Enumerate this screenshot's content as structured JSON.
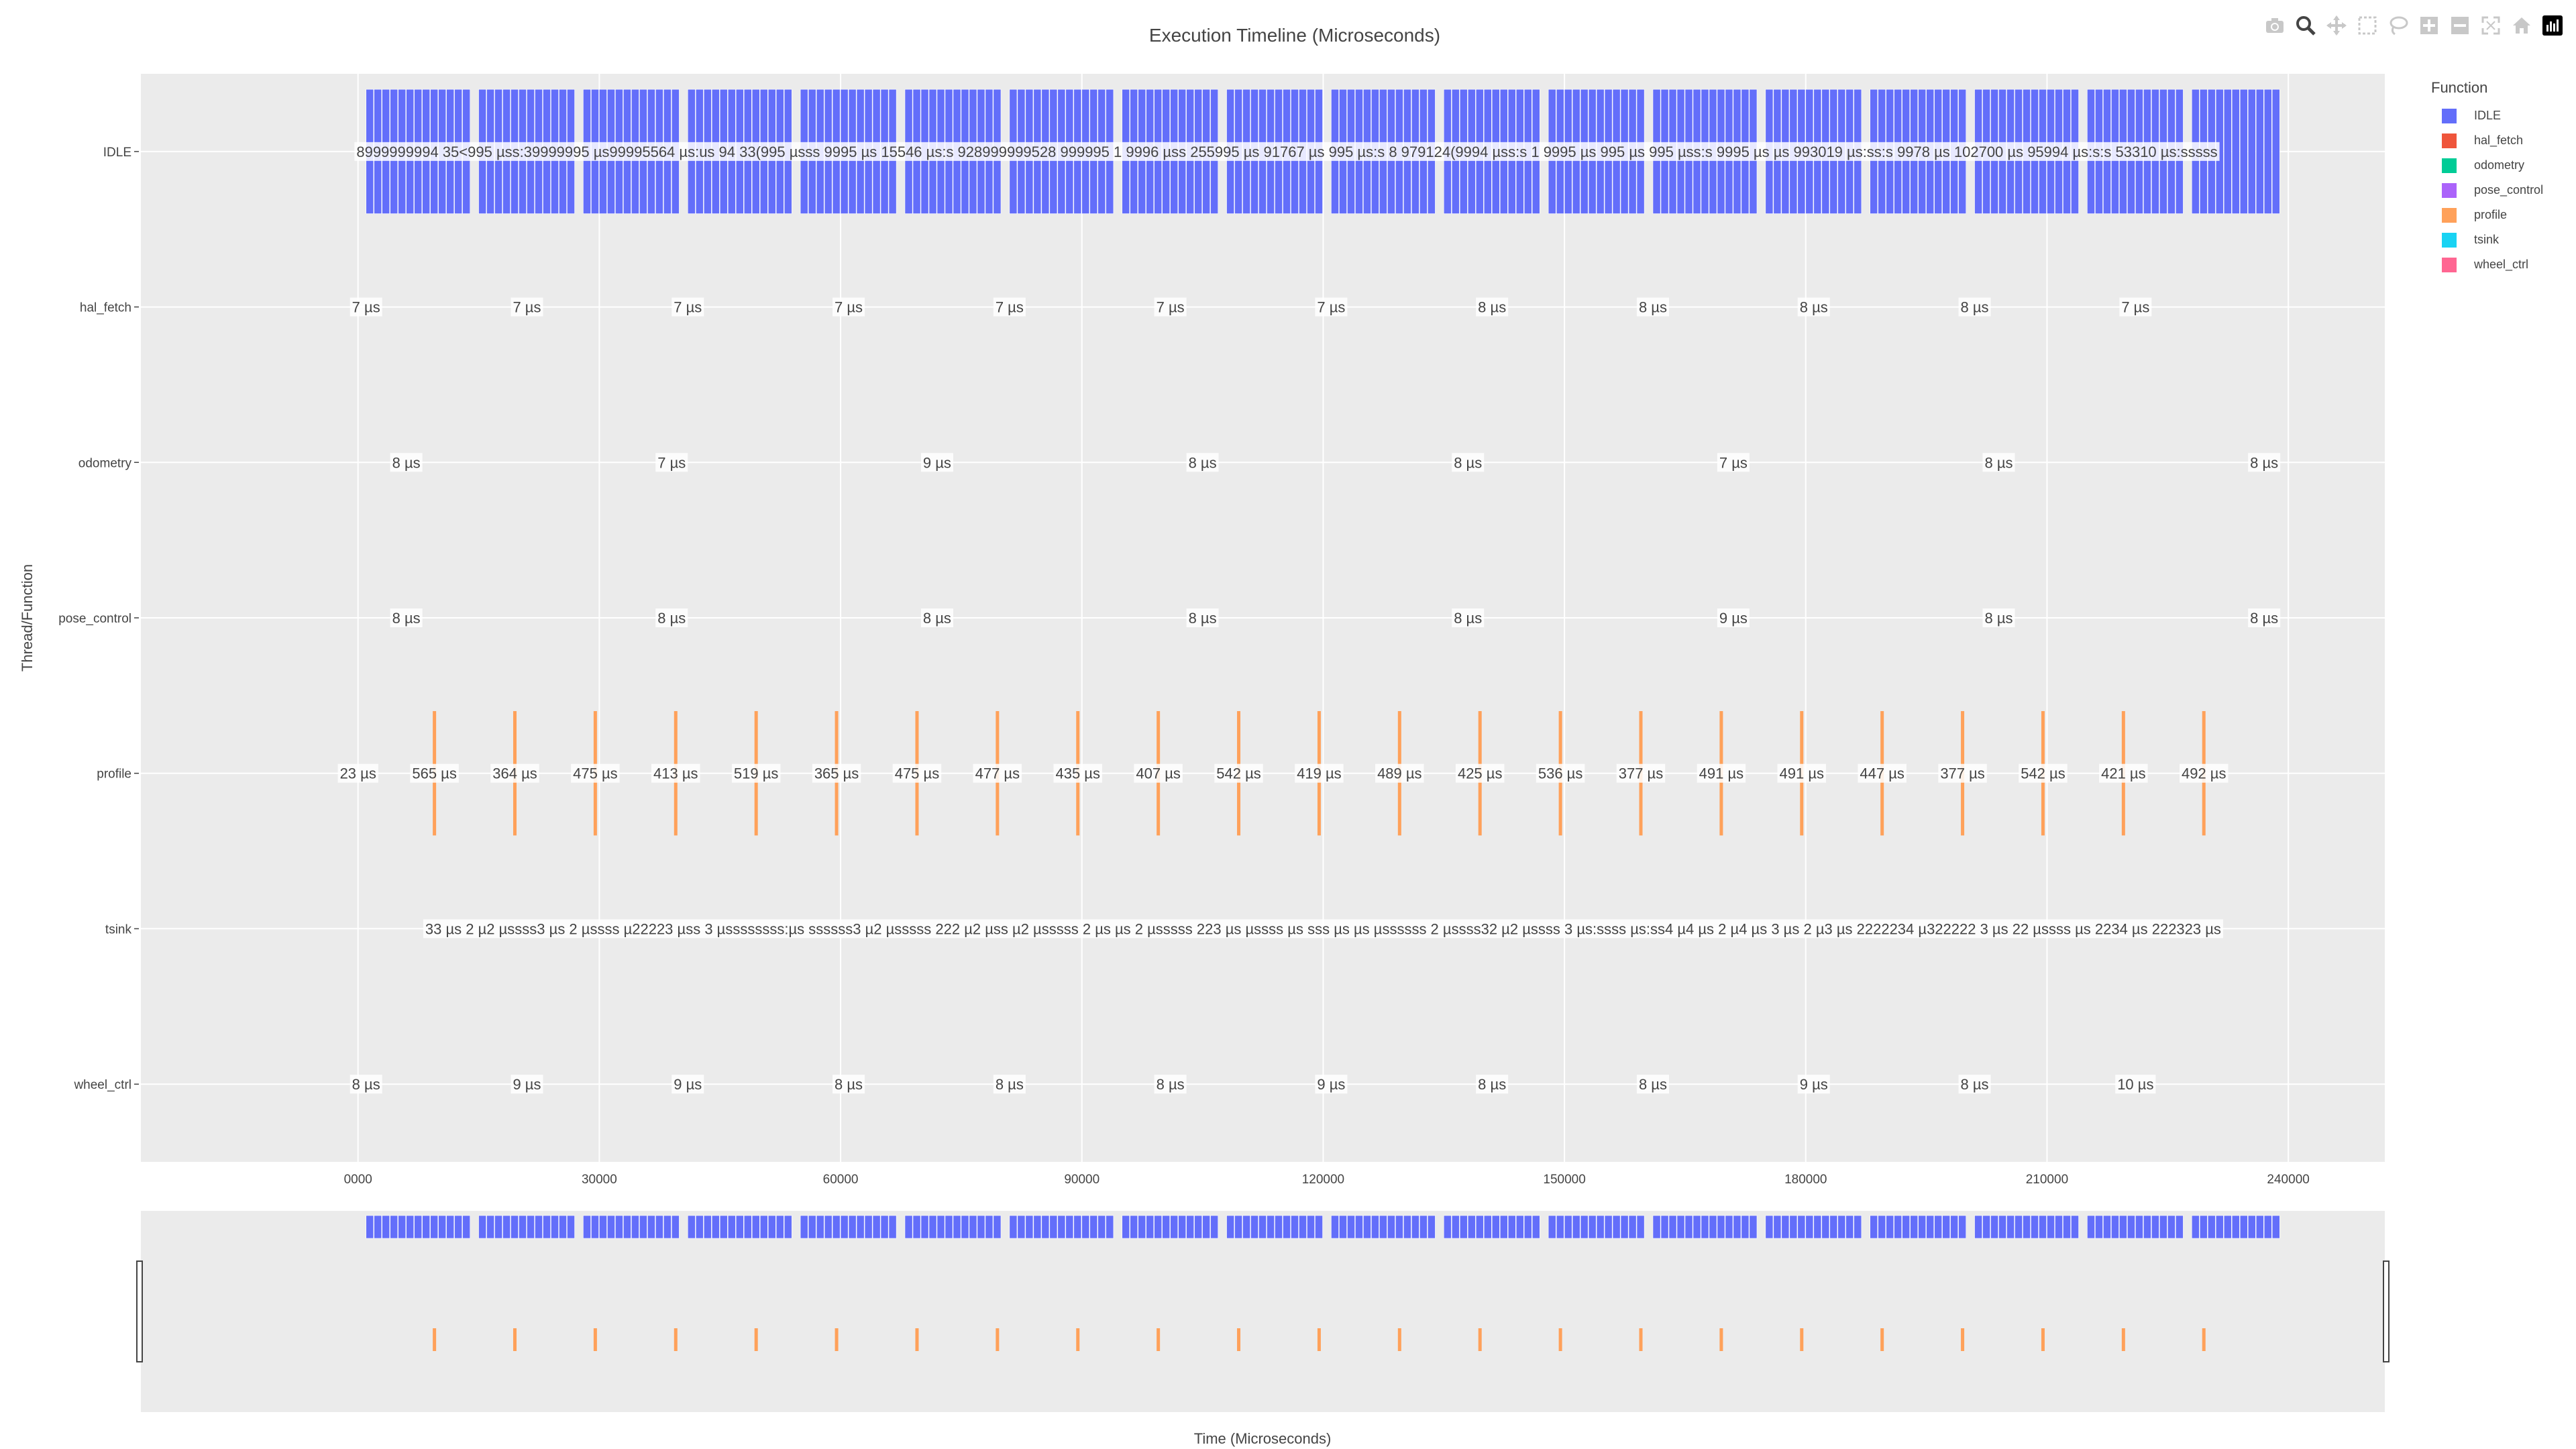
{
  "chart_data": {
    "type": "timeline",
    "title": "Execution Timeline (Microseconds)",
    "xlabel": "Time (Microseconds)",
    "ylabel": "Thread/Function",
    "xlim": [
      -27000,
      252000
    ],
    "x_ticks": [
      "0000",
      "30000",
      "60000",
      "90000",
      "120000",
      "150000",
      "180000",
      "210000",
      "240000"
    ],
    "x_tick_values": [
      0,
      30000,
      60000,
      90000,
      120000,
      150000,
      180000,
      210000,
      240000
    ],
    "categories": [
      "IDLE",
      "hal_fetch",
      "odometry",
      "pose_control",
      "profile",
      "tsink",
      "wheel_ctrl"
    ],
    "legend_title": "Function",
    "legend_placement": "right",
    "grid": true,
    "range_slider": true,
    "colors": {
      "IDLE": "#636efa",
      "hal_fetch": "#EF553B",
      "odometry": "#00cc96",
      "pose_control": "#ab63fa",
      "profile": "#FFA15A",
      "tsink": "#19d3f3",
      "wheel_ctrl": "#FF6692"
    },
    "idle_span": [
      0,
      239000
    ],
    "series": [
      {
        "name": "hal_fetch",
        "x": [
          1000,
          21000,
          41000,
          61000,
          81000,
          101000,
          121000,
          141000,
          161000,
          181000,
          201000,
          221000
        ],
        "labels": [
          "7 µs",
          "7 µs",
          "7 µs",
          "7 µs",
          "7 µs",
          "7 µs",
          "7 µs",
          "8 µs",
          "8 µs",
          "8 µs",
          "8 µs",
          "7 µs"
        ]
      },
      {
        "name": "odometry",
        "x": [
          6000,
          39000,
          72000,
          105000,
          138000,
          171000,
          204000,
          237000
        ],
        "labels": [
          "8 µs",
          "7 µs",
          "9 µs",
          "8 µs",
          "8 µs",
          "7 µs",
          "8 µs",
          "8 µs"
        ]
      },
      {
        "name": "pose_control",
        "x": [
          6000,
          39000,
          72000,
          105000,
          138000,
          171000,
          204000,
          237000
        ],
        "labels": [
          "8 µs",
          "8 µs",
          "8 µs",
          "8 µs",
          "8 µs",
          "9 µs",
          "8 µs",
          "8 µs"
        ]
      },
      {
        "name": "profile",
        "x": [
          0,
          9500,
          19500,
          29500,
          39500,
          49500,
          59500,
          69500,
          79500,
          89500,
          99500,
          109500,
          119500,
          129500,
          139500,
          149500,
          159500,
          169500,
          179500,
          189500,
          199500,
          209500,
          219500,
          229500
        ],
        "labels": [
          "23 µs",
          "565 µs",
          "364 µs",
          "475 µs",
          "413 µs",
          "519 µs",
          "365 µs",
          "475 µs",
          "477 µs",
          "435 µs",
          "407 µs",
          "542 µs",
          "419 µs",
          "489 µs",
          "425 µs",
          "536 µs",
          "377 µs",
          "491 µs",
          "491 µs",
          "447 µs",
          "377 µs",
          "542 µs",
          "421 µs",
          "492 µs"
        ]
      },
      {
        "name": "wheel_ctrl",
        "x": [
          1000,
          21000,
          41000,
          61000,
          81000,
          101000,
          121000,
          141000,
          161000,
          181000,
          201000,
          221000
        ],
        "labels": [
          "8 µs",
          "9 µs",
          "9 µs",
          "8 µs",
          "8 µs",
          "8 µs",
          "9 µs",
          "8 µs",
          "8 µs",
          "9 µs",
          "8 µs",
          "10 µs"
        ]
      }
    ],
    "idle_label_text": "8999999994 35<995 µss:39999995 µs99995564 µs:us 94 33(995 µsss 9995 µs 15546 µs:s 928999999528 999995 1 9996 µss 255995 µs 91767 µs 995 µs:s 8 979124(9994 µss:s 1 9995 µs 995 µs 995 µss:s 9995 µs µs 993019 µs:ss:s 9978 µs 102700 µs 95994 µs:s:s 53310 µs:sssss",
    "tsink_label_text": "33 µs 2 µ2 µssss3 µs 2 µssss µ22223 µss 3 µssssssss:µs ssssss3 µ2 µsssss 222 µ2 µss µ2 µsssss 2 µs µs 2 µsssss 223 µs µssss µs sss µs µs µssssss 2 µssss32 µ2 µssss 3 µs:ssss µs:ss4 µ4 µs 2 µ4 µs 3 µs 2 µ3 µs 2222234 µ322222 3 µs 22 µssss µs 2234 µs 222323 µs"
  },
  "toolbar": {
    "icons": [
      "camera-icon",
      "zoom-icon",
      "pan-icon",
      "box-select-icon",
      "lasso-select-icon",
      "zoom-in-icon",
      "zoom-out-icon",
      "autoscale-icon",
      "reset-axes-icon",
      "plotly-logo-icon"
    ]
  }
}
